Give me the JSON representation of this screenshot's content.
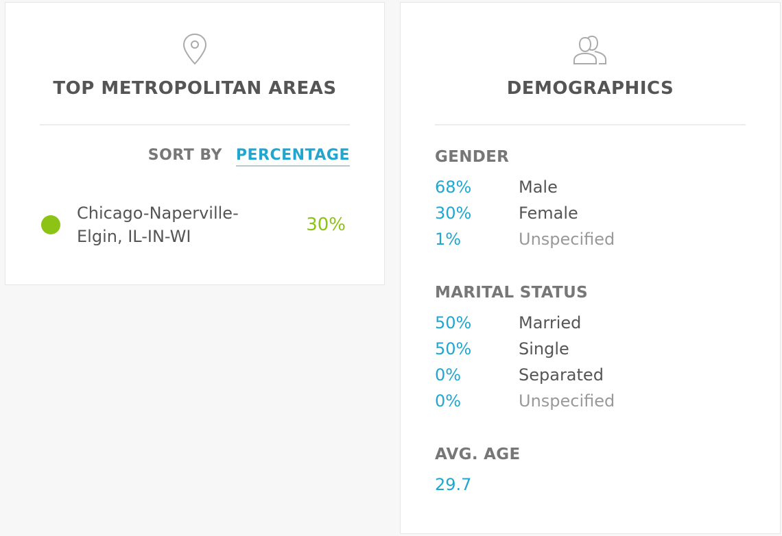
{
  "metro": {
    "icon": "location-pin-icon",
    "title": "TOP METROPOLITAN AREAS",
    "sort_label": "SORT BY",
    "sort_value": "PERCENTAGE",
    "items": [
      {
        "name": "Chicago-Naperville-Elgin, IL-IN-WI",
        "percent": "30%",
        "color": "#8cc314"
      }
    ]
  },
  "demographics": {
    "icon": "people-icon",
    "title": "DEMOGRAPHICS",
    "gender": {
      "title": "GENDER",
      "rows": [
        {
          "percent": "68%",
          "label": "Male"
        },
        {
          "percent": "30%",
          "label": "Female"
        },
        {
          "percent": "1%",
          "label": "Unspecified"
        }
      ]
    },
    "marital": {
      "title": "MARITAL STATUS",
      "rows": [
        {
          "percent": "50%",
          "label": "Married"
        },
        {
          "percent": "50%",
          "label": "Single"
        },
        {
          "percent": "0%",
          "label": "Separated"
        },
        {
          "percent": "0%",
          "label": "Unspecified"
        }
      ]
    },
    "age": {
      "title": "AVG. AGE",
      "value": "29.7"
    }
  },
  "colors": {
    "accent_blue": "#22a6cf",
    "accent_green": "#8cc314",
    "muted_text": "#999999"
  }
}
